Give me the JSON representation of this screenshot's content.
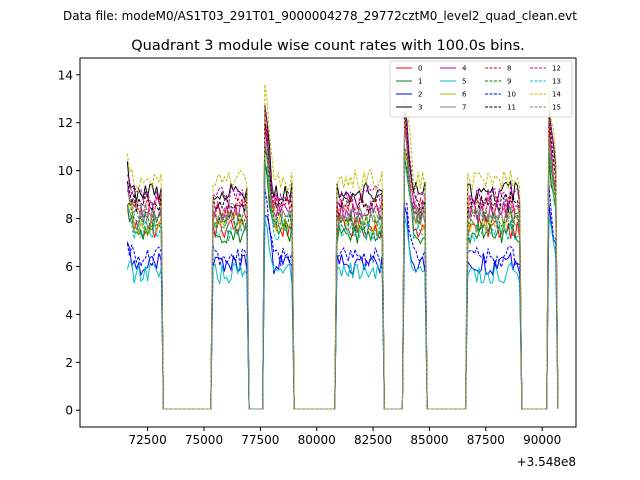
{
  "suptitle": "Data file: modeM0/AS1T03_291T01_9000004278_29772cztM0_level2_quad_clean.evt",
  "chart_data": {
    "type": "line",
    "title": "Quadrant 3 module wise count rates with 100.0s bins.",
    "xlabel": "",
    "ylabel": "",
    "x_offset_label": "+3.548e8",
    "x_offset": 354800000,
    "xlim": [
      69500,
      91500
    ],
    "ylim": [
      -0.7,
      14.7
    ],
    "xticks": [
      72500,
      75000,
      77500,
      80000,
      82500,
      85000,
      87500,
      90000
    ],
    "xtick_labels": [
      "72500",
      "75000",
      "77500",
      "80000",
      "82500",
      "85000",
      "87500",
      "90000"
    ],
    "yticks": [
      0,
      2,
      4,
      6,
      8,
      10,
      12,
      14
    ],
    "ytick_labels": [
      "0",
      "2",
      "4",
      "6",
      "8",
      "10",
      "12",
      "14"
    ],
    "grid": false,
    "legend_position": "top-right",
    "on_intervals": [
      {
        "start": 71600,
        "end": 73100
      },
      {
        "start": 75400,
        "end": 76900
      },
      {
        "start": 77700,
        "end": 78900
      },
      {
        "start": 80900,
        "end": 82900
      },
      {
        "start": 83900,
        "end": 84800
      },
      {
        "start": 86700,
        "end": 89000
      },
      {
        "start": 90300,
        "end": 90600
      }
    ],
    "off_level": 0.05,
    "series": [
      {
        "name": "0",
        "color": "#ff0000",
        "dash": "solid",
        "base": 7.6
      },
      {
        "name": "1",
        "color": "#008000",
        "dash": "solid",
        "base": 7.4
      },
      {
        "name": "2",
        "color": "#0000ff",
        "dash": "solid",
        "base": 6.1
      },
      {
        "name": "3",
        "color": "#000000",
        "dash": "solid",
        "base": 9.1
      },
      {
        "name": "4",
        "color": "#bf00bf",
        "dash": "solid",
        "base": 8.3
      },
      {
        "name": "5",
        "color": "#00bfbf",
        "dash": "solid",
        "base": 5.7
      },
      {
        "name": "6",
        "color": "#bfbf00",
        "dash": "solid",
        "base": 7.8
      },
      {
        "name": "7",
        "color": "#808080",
        "dash": "solid",
        "base": 8.0
      },
      {
        "name": "8",
        "color": "#ff0000",
        "dash": "dashed",
        "base": 8.5
      },
      {
        "name": "9",
        "color": "#008000",
        "dash": "dashed",
        "base": 7.9
      },
      {
        "name": "10",
        "color": "#0000ff",
        "dash": "dashed",
        "base": 6.4
      },
      {
        "name": "11",
        "color": "#000000",
        "dash": "dashed",
        "base": 8.7
      },
      {
        "name": "12",
        "color": "#bf00bf",
        "dash": "dashed",
        "base": 8.9
      },
      {
        "name": "13",
        "color": "#00bfbf",
        "dash": "dashed",
        "base": 7.5
      },
      {
        "name": "14",
        "color": "#bfbf00",
        "dash": "dashed",
        "base": 9.6
      },
      {
        "name": "15",
        "color": "#808080",
        "dash": "dashed",
        "base": 8.2
      }
    ]
  }
}
